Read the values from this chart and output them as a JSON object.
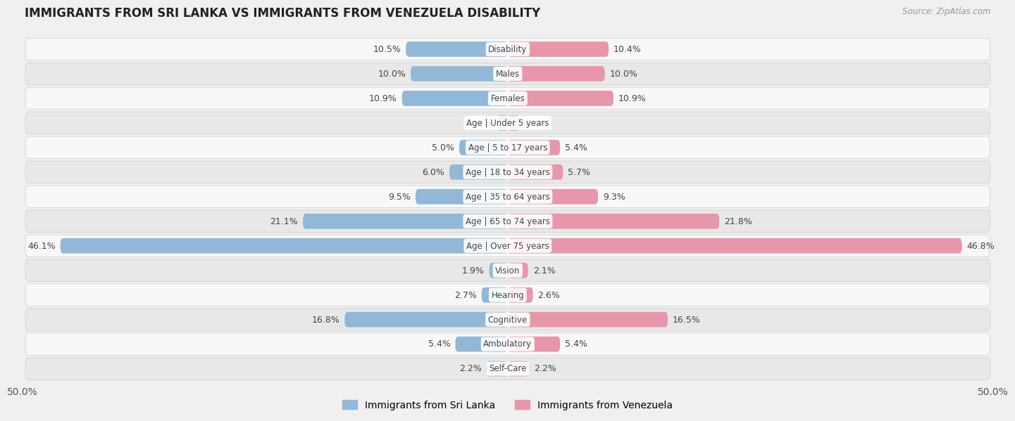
{
  "title": "IMMIGRANTS FROM SRI LANKA VS IMMIGRANTS FROM VENEZUELA DISABILITY",
  "source": "Source: ZipAtlas.com",
  "categories": [
    "Disability",
    "Males",
    "Females",
    "Age | Under 5 years",
    "Age | 5 to 17 years",
    "Age | 18 to 34 years",
    "Age | 35 to 64 years",
    "Age | 65 to 74 years",
    "Age | Over 75 years",
    "Vision",
    "Hearing",
    "Cognitive",
    "Ambulatory",
    "Self-Care"
  ],
  "sri_lanka": [
    10.5,
    10.0,
    10.9,
    1.1,
    5.0,
    6.0,
    9.5,
    21.1,
    46.1,
    1.9,
    2.7,
    16.8,
    5.4,
    2.2
  ],
  "venezuela": [
    10.4,
    10.0,
    10.9,
    1.2,
    5.4,
    5.7,
    9.3,
    21.8,
    46.8,
    2.1,
    2.6,
    16.5,
    5.4,
    2.2
  ],
  "sri_lanka_color": "#92b8d8",
  "venezuela_color": "#e896aa",
  "sri_lanka_label": "Immigrants from Sri Lanka",
  "venezuela_label": "Immigrants from Venezuela",
  "axis_label_left": "50.0%",
  "axis_label_right": "50.0%",
  "max_val": 50.0,
  "background_color": "#f0f0f0",
  "row_bg_light": "#f8f8f8",
  "row_bg_dark": "#e8e8e8",
  "title_fontsize": 12,
  "bar_height": 0.62
}
